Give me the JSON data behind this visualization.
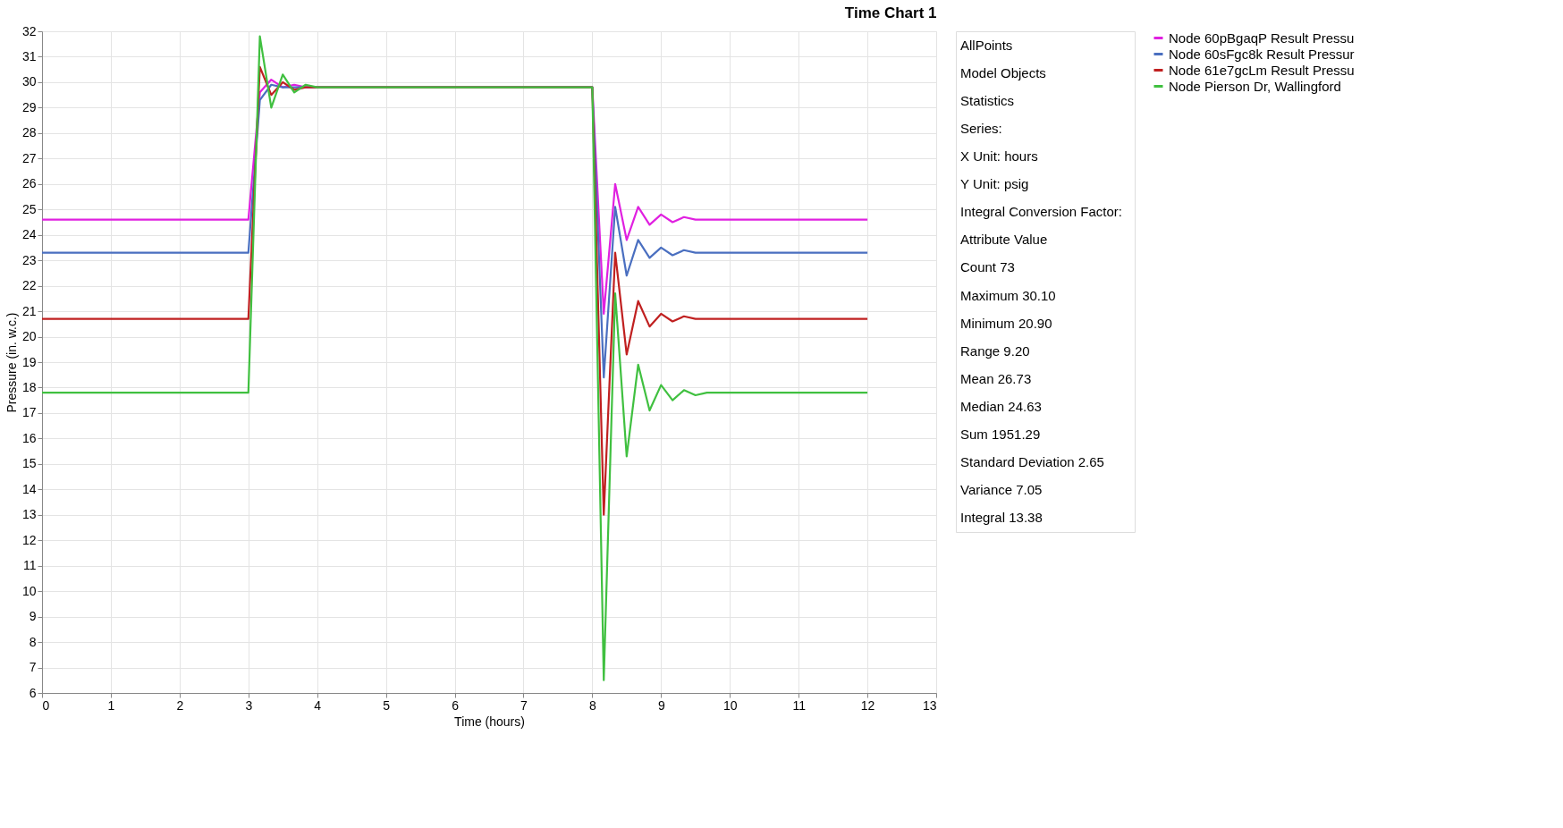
{
  "chart_data": {
    "type": "line",
    "title": "Time Chart 1",
    "xlabel": "Time (hours)",
    "ylabel": "Pressure (in. w.c.)",
    "xlim": [
      0,
      13
    ],
    "xticks": [
      0,
      1,
      2,
      3,
      4,
      5,
      6,
      7,
      8,
      9,
      10,
      11,
      12,
      13
    ],
    "ylim": [
      6,
      32
    ],
    "yticks": [
      6,
      7,
      8,
      9,
      10,
      11,
      12,
      13,
      14,
      15,
      16,
      17,
      18,
      19,
      20,
      21,
      22,
      23,
      24,
      25,
      26,
      27,
      28,
      29,
      30,
      31,
      32
    ],
    "grid": true,
    "legend": "right",
    "marker": "none",
    "line_style": "solid",
    "x": [
      0,
      3,
      3.167,
      3.333,
      3.5,
      3.667,
      3.833,
      4,
      8,
      8.167,
      8.333,
      8.5,
      8.667,
      8.833,
      9,
      9.167,
      9.333,
      9.5,
      9.667,
      12
    ],
    "series": [
      {
        "name": "Node 60pBgaqP Result Pressu",
        "color": "#e020e0",
        "values": [
          24.6,
          24.6,
          29.6,
          30.1,
          29.8,
          29.9,
          29.8,
          29.8,
          29.8,
          20.9,
          26.0,
          23.8,
          25.1,
          24.4,
          24.8,
          24.5,
          24.7,
          24.6,
          24.6,
          24.6
        ]
      },
      {
        "name": "Node 60sFgc8k Result Pressur",
        "color": "#4a6fc0",
        "values": [
          23.3,
          23.3,
          29.3,
          29.9,
          29.8,
          29.8,
          29.8,
          29.8,
          29.8,
          18.4,
          25.1,
          22.4,
          23.8,
          23.1,
          23.5,
          23.2,
          23.4,
          23.3,
          23.3,
          23.3
        ]
      },
      {
        "name": "Node 61e7gcLm Result Pressu",
        "color": "#c02020",
        "values": [
          20.7,
          20.7,
          30.6,
          29.5,
          30.0,
          29.7,
          29.8,
          29.8,
          29.8,
          13.0,
          23.3,
          19.3,
          21.4,
          20.4,
          20.9,
          20.6,
          20.8,
          20.7,
          20.7,
          20.7
        ]
      },
      {
        "name": "Node Pierson Dr, Wallingford",
        "color": "#40c040",
        "values": [
          17.8,
          17.8,
          31.8,
          29.0,
          30.3,
          29.6,
          29.9,
          29.8,
          29.8,
          6.5,
          21.7,
          15.3,
          18.9,
          17.1,
          18.1,
          17.5,
          17.9,
          17.7,
          17.8,
          17.8
        ]
      }
    ],
    "annotations": [
      "AllPoints",
      "Model Objects",
      "Statistics",
      "Series:",
      "X Unit: hours",
      "Y Unit: psig",
      "Integral Conversion Factor:",
      "Attribute  Value",
      "Count  73",
      "Maximum  30.10",
      "Minimum  20.90",
      "Range  9.20",
      "Mean  26.73",
      "Median  24.63",
      "Sum  1951.29",
      "Standard Deviation  2.65",
      "Variance  7.05",
      "Integral  13.38"
    ]
  }
}
